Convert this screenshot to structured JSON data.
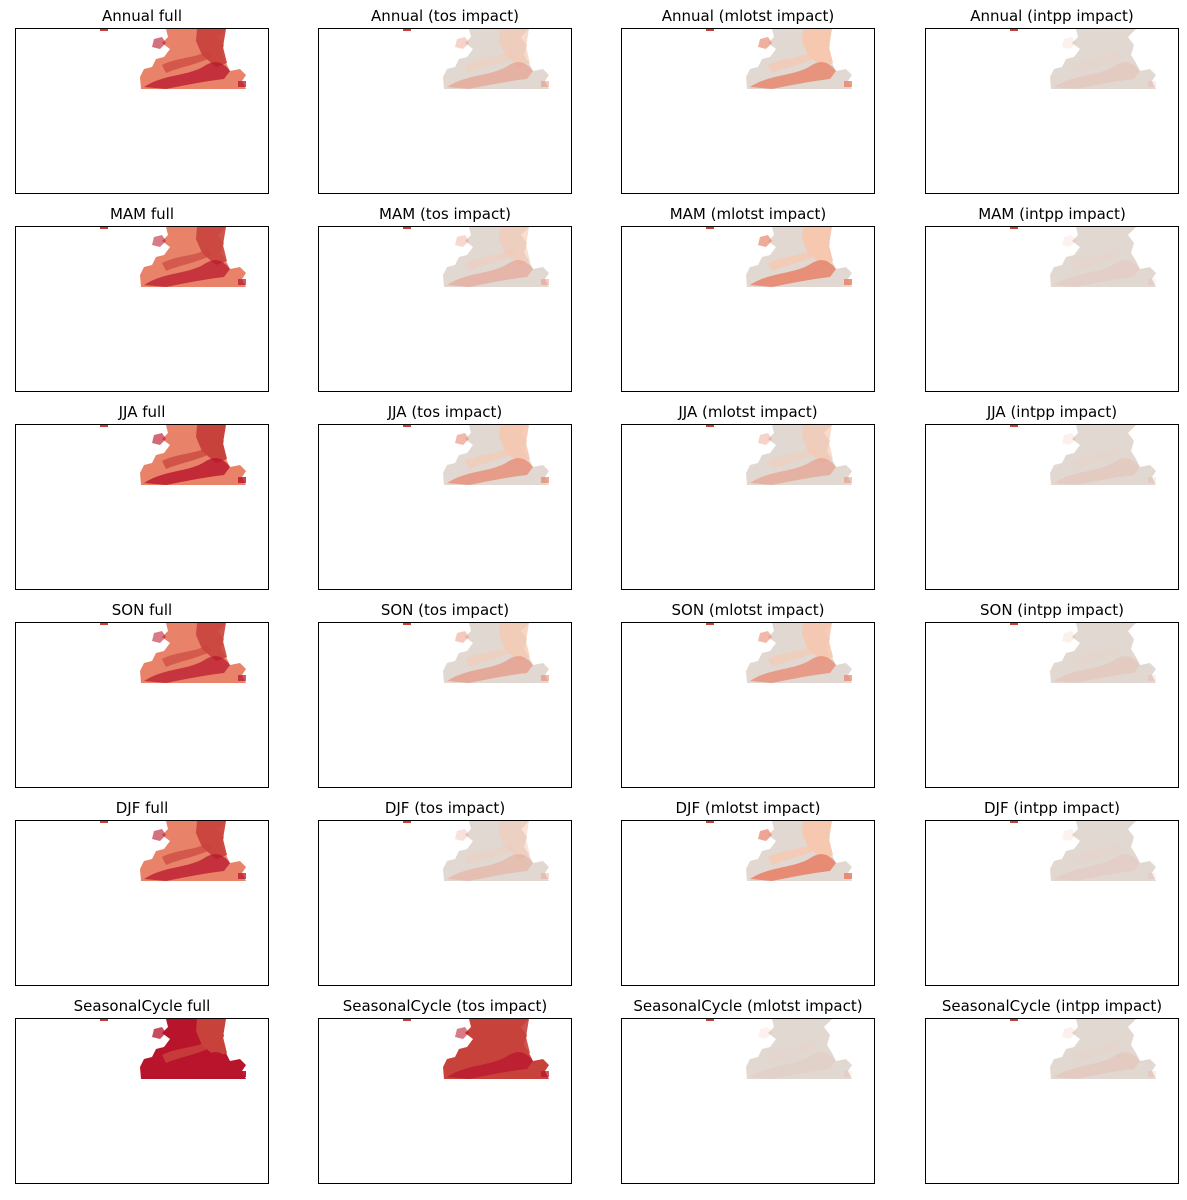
{
  "colors": {
    "neutral": "#e2d8d2",
    "light": "#f6c8b0",
    "mid": "#e8836a",
    "strong": "#c8423c",
    "dark": "#b8142c",
    "speck": "#c8423c"
  },
  "chart_data": {
    "type": "heatmap",
    "rows": [
      "Annual",
      "MAM",
      "JJA",
      "SON",
      "DJF",
      "SeasonalCycle"
    ],
    "columns": [
      "full",
      "tos impact",
      "mlotst impact",
      "intpp impact"
    ],
    "panels": [
      {
        "title": "Annual full",
        "base": "mid",
        "intensity": 0.75
      },
      {
        "title": "Annual (tos impact)",
        "base": "neutral",
        "intensity": 0.45
      },
      {
        "title": "Annual (mlotst impact)",
        "base": "neutral",
        "intensity": 0.8
      },
      {
        "title": "Annual (intpp impact)",
        "base": "neutral",
        "intensity": 0.15
      },
      {
        "title": "MAM full",
        "base": "mid",
        "intensity": 0.7
      },
      {
        "title": "MAM (tos impact)",
        "base": "neutral",
        "intensity": 0.4
      },
      {
        "title": "MAM (mlotst impact)",
        "base": "neutral",
        "intensity": 0.85
      },
      {
        "title": "MAM (intpp impact)",
        "base": "neutral",
        "intensity": 0.1
      },
      {
        "title": "JJA full",
        "base": "mid",
        "intensity": 0.8
      },
      {
        "title": "JJA (tos impact)",
        "base": "neutral",
        "intensity": 0.7
      },
      {
        "title": "JJA (mlotst impact)",
        "base": "neutral",
        "intensity": 0.45
      },
      {
        "title": "JJA (intpp impact)",
        "base": "neutral",
        "intensity": 0.15
      },
      {
        "title": "SON full",
        "base": "mid",
        "intensity": 0.7
      },
      {
        "title": "SON (tos impact)",
        "base": "neutral",
        "intensity": 0.55
      },
      {
        "title": "SON (mlotst impact)",
        "base": "neutral",
        "intensity": 0.7
      },
      {
        "title": "SON (intpp impact)",
        "base": "neutral",
        "intensity": 0.15
      },
      {
        "title": "DJF full",
        "base": "mid",
        "intensity": 0.75
      },
      {
        "title": "DJF (tos impact)",
        "base": "neutral",
        "intensity": 0.3
      },
      {
        "title": "DJF (mlotst impact)",
        "base": "neutral",
        "intensity": 0.9
      },
      {
        "title": "DJF (intpp impact)",
        "base": "neutral",
        "intensity": 0.1
      },
      {
        "title": "SeasonalCycle full",
        "base": "dark",
        "intensity": 0.95
      },
      {
        "title": "SeasonalCycle (tos impact)",
        "base": "strong",
        "intensity": 0.7
      },
      {
        "title": "SeasonalCycle (mlotst impact)",
        "base": "neutral",
        "intensity": 0.05
      },
      {
        "title": "SeasonalCycle (intpp impact)",
        "base": "neutral",
        "intensity": 0.15
      }
    ]
  }
}
